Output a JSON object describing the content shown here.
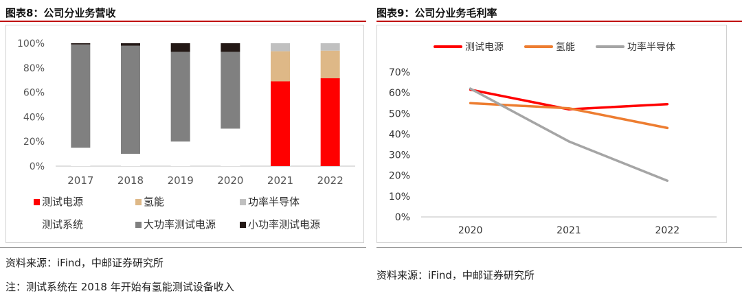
{
  "panel1": {
    "title": "图表8：公司分业务营收",
    "source": "资料来源：iFind，中邮证券研究所",
    "note": "注：测试系统在 2018 年开始有氢能测试设备收入"
  },
  "panel2": {
    "title": "图表9：公司分业务毛利率",
    "source": "资料来源：iFind，中邮证券研究所"
  },
  "chart_data": [
    {
      "type": "bar",
      "stacked": true,
      "title": "图表8：公司分业务营收",
      "categories": [
        "2017",
        "2018",
        "2019",
        "2020",
        "2021",
        "2022"
      ],
      "y_ticks": [
        "0%",
        "20%",
        "40%",
        "60%",
        "80%",
        "100%"
      ],
      "ylim": [
        0,
        100
      ],
      "series": [
        {
          "name": "测试电源",
          "color": "#ff0000",
          "values": [
            0,
            0,
            0,
            0,
            69,
            71.5
          ]
        },
        {
          "name": "氢能",
          "color": "#deb887",
          "values": [
            0,
            0,
            0,
            0,
            24.5,
            22.5
          ]
        },
        {
          "name": "功率半导体",
          "color": "#c0c0c0",
          "values": [
            0,
            0,
            0,
            0,
            6.5,
            6
          ]
        },
        {
          "name": "测试系统",
          "color": "#ffffff",
          "values": [
            15,
            10,
            20,
            30.5,
            0,
            0
          ]
        },
        {
          "name": "大功率测试电源",
          "color": "#808080",
          "values": [
            84,
            88,
            73,
            62.5,
            0,
            0
          ]
        },
        {
          "name": "小功率测试电源",
          "color": "#231815",
          "values": [
            1,
            2,
            7,
            7,
            0,
            0
          ]
        }
      ]
    },
    {
      "type": "line",
      "title": "图表9：公司分业务毛利率",
      "categories": [
        "2020",
        "2021",
        "2022"
      ],
      "y_ticks": [
        "0%",
        "10%",
        "20%",
        "30%",
        "40%",
        "50%",
        "60%",
        "70%"
      ],
      "ylim": [
        0,
        70
      ],
      "series": [
        {
          "name": "测试电源",
          "color": "#ff0000",
          "values": [
            61.5,
            52,
            54.5
          ]
        },
        {
          "name": "氢能",
          "color": "#ed7d31",
          "values": [
            55,
            52.5,
            43
          ]
        },
        {
          "name": "功率半导体",
          "color": "#a5a5a5",
          "values": [
            62,
            36.5,
            17.5
          ]
        }
      ]
    }
  ]
}
